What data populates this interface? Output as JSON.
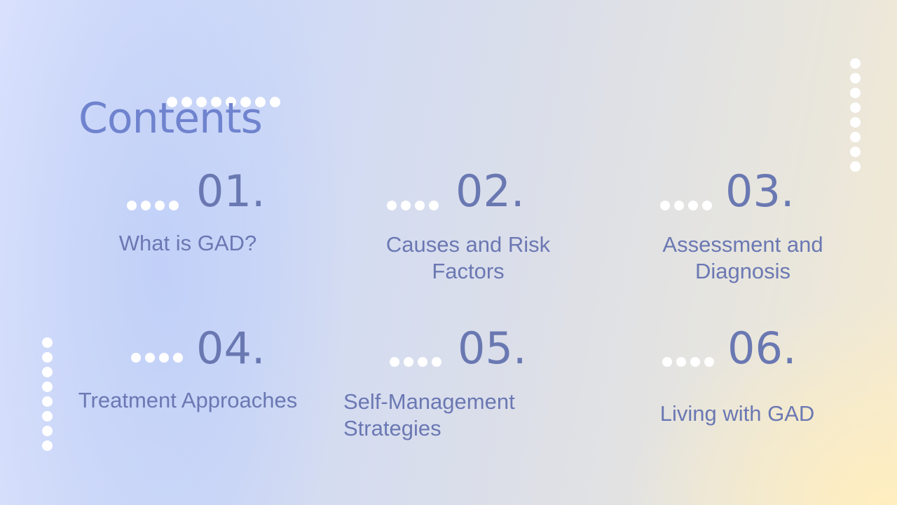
{
  "title": "Contents",
  "items": [
    {
      "number": "01.",
      "label": "What is GAD?"
    },
    {
      "number": "02.",
      "label": "Causes and Risk Factors"
    },
    {
      "number": "03.",
      "label": "Assessment and Diagnosis"
    },
    {
      "number": "04.",
      "label": "Treatment Approaches"
    },
    {
      "number": "05.",
      "label": "Self-Management Strategies"
    },
    {
      "number": "06.",
      "label": "Living with GAD"
    }
  ],
  "colors": {
    "title": "#6f83ce",
    "number": "#6a78b2",
    "label": "#6b78b3",
    "dots": "#ffffff"
  }
}
